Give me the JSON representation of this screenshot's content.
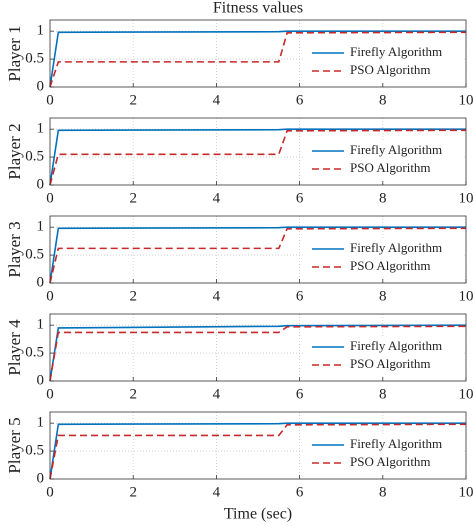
{
  "chart_data": [
    {
      "type": "line",
      "title": "Fitness values",
      "ylabel": "Player 1",
      "x": [
        0,
        0.2,
        5.5,
        5.7,
        10
      ],
      "series": [
        {
          "name": "Firefly Algorithm",
          "color": "#0072bd",
          "linestyle": "solid",
          "values": [
            0,
            0.98,
            0.99,
            1,
            1
          ]
        },
        {
          "name": "PSO Algorithm",
          "color": "#c8282a",
          "linestyle": "dashed",
          "values": [
            0,
            0.45,
            0.45,
            0.97,
            0.98
          ]
        }
      ],
      "xlim": [
        0,
        10
      ],
      "xticks": [
        0,
        2,
        4,
        6,
        8,
        10
      ],
      "ylim": [
        0,
        1.2
      ],
      "yticks": [
        0,
        0.5,
        1
      ],
      "grid": true,
      "legend": "lower right"
    },
    {
      "type": "line",
      "ylabel": "Player 2",
      "x": [
        0,
        0.2,
        5.5,
        5.7,
        10
      ],
      "series": [
        {
          "name": "Firefly Algorithm",
          "color": "#0072bd",
          "linestyle": "solid",
          "values": [
            0,
            0.98,
            0.99,
            1,
            1
          ]
        },
        {
          "name": "PSO Algorithm",
          "color": "#c8282a",
          "linestyle": "dashed",
          "values": [
            0,
            0.55,
            0.55,
            0.97,
            0.98
          ]
        }
      ],
      "xlim": [
        0,
        10
      ],
      "xticks": [
        0,
        2,
        4,
        6,
        8,
        10
      ],
      "ylim": [
        0,
        1.2
      ],
      "yticks": [
        0,
        0.5,
        1
      ],
      "grid": true,
      "legend": "lower right"
    },
    {
      "type": "line",
      "ylabel": "Player 3",
      "x": [
        0,
        0.2,
        5.5,
        5.7,
        10
      ],
      "series": [
        {
          "name": "Firefly Algorithm",
          "color": "#0072bd",
          "linestyle": "solid",
          "values": [
            0,
            0.98,
            0.99,
            1,
            1
          ]
        },
        {
          "name": "PSO Algorithm",
          "color": "#c8282a",
          "linestyle": "dashed",
          "values": [
            0,
            0.62,
            0.62,
            0.97,
            0.98
          ]
        }
      ],
      "xlim": [
        0,
        10
      ],
      "xticks": [
        0,
        2,
        4,
        6,
        8,
        10
      ],
      "ylim": [
        0,
        1.2
      ],
      "yticks": [
        0,
        0.5,
        1
      ],
      "grid": true,
      "legend": "lower right"
    },
    {
      "type": "line",
      "ylabel": "Player 4",
      "x": [
        0,
        0.2,
        5.5,
        5.7,
        10
      ],
      "series": [
        {
          "name": "Firefly Algorithm",
          "color": "#0072bd",
          "linestyle": "solid",
          "values": [
            0,
            0.95,
            0.98,
            0.99,
            1
          ]
        },
        {
          "name": "PSO Algorithm",
          "color": "#c8282a",
          "linestyle": "dashed",
          "values": [
            0,
            0.87,
            0.87,
            0.97,
            0.98
          ]
        }
      ],
      "xlim": [
        0,
        10
      ],
      "xticks": [
        0,
        2,
        4,
        6,
        8,
        10
      ],
      "ylim": [
        0,
        1.2
      ],
      "yticks": [
        0,
        0.5,
        1
      ],
      "grid": true,
      "legend": "lower right"
    },
    {
      "type": "line",
      "ylabel": "Player 5",
      "xlabel": "Time (sec)",
      "x": [
        0,
        0.2,
        5.5,
        5.7,
        10
      ],
      "series": [
        {
          "name": "Firefly Algorithm",
          "color": "#0072bd",
          "linestyle": "solid",
          "values": [
            0,
            0.98,
            0.99,
            1,
            1
          ]
        },
        {
          "name": "PSO Algorithm",
          "color": "#c8282a",
          "linestyle": "dashed",
          "values": [
            0,
            0.78,
            0.78,
            0.97,
            0.98
          ]
        }
      ],
      "xlim": [
        0,
        10
      ],
      "xticks": [
        0,
        2,
        4,
        6,
        8,
        10
      ],
      "ylim": [
        0,
        1.2
      ],
      "yticks": [
        0,
        0.5,
        1
      ],
      "grid": true,
      "legend": "lower right"
    }
  ]
}
